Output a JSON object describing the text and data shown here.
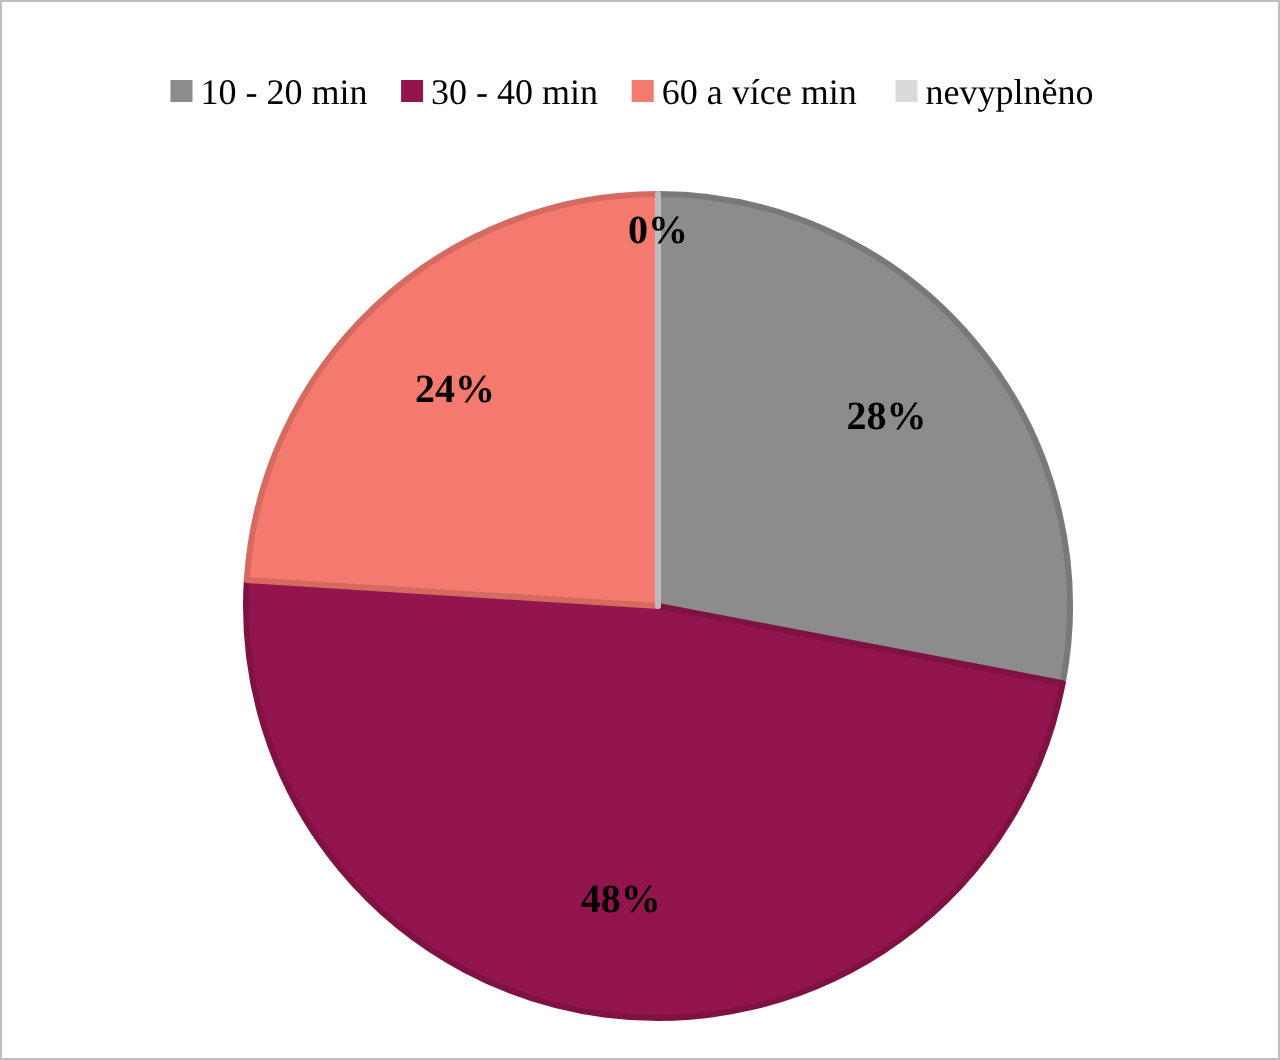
{
  "chart_data": {
    "type": "pie",
    "categories": [
      "10 - 20 min",
      "30 - 40 min",
      "60 a více min",
      "nevyplněno"
    ],
    "values": [
      28,
      48,
      24,
      0
    ],
    "colors": [
      "#8c8c8c",
      "#93154d",
      "#f47a6f",
      "#d9d9d9"
    ],
    "value_labels": [
      "28%",
      "48%",
      "24%",
      "0%"
    ],
    "legend": "top"
  }
}
